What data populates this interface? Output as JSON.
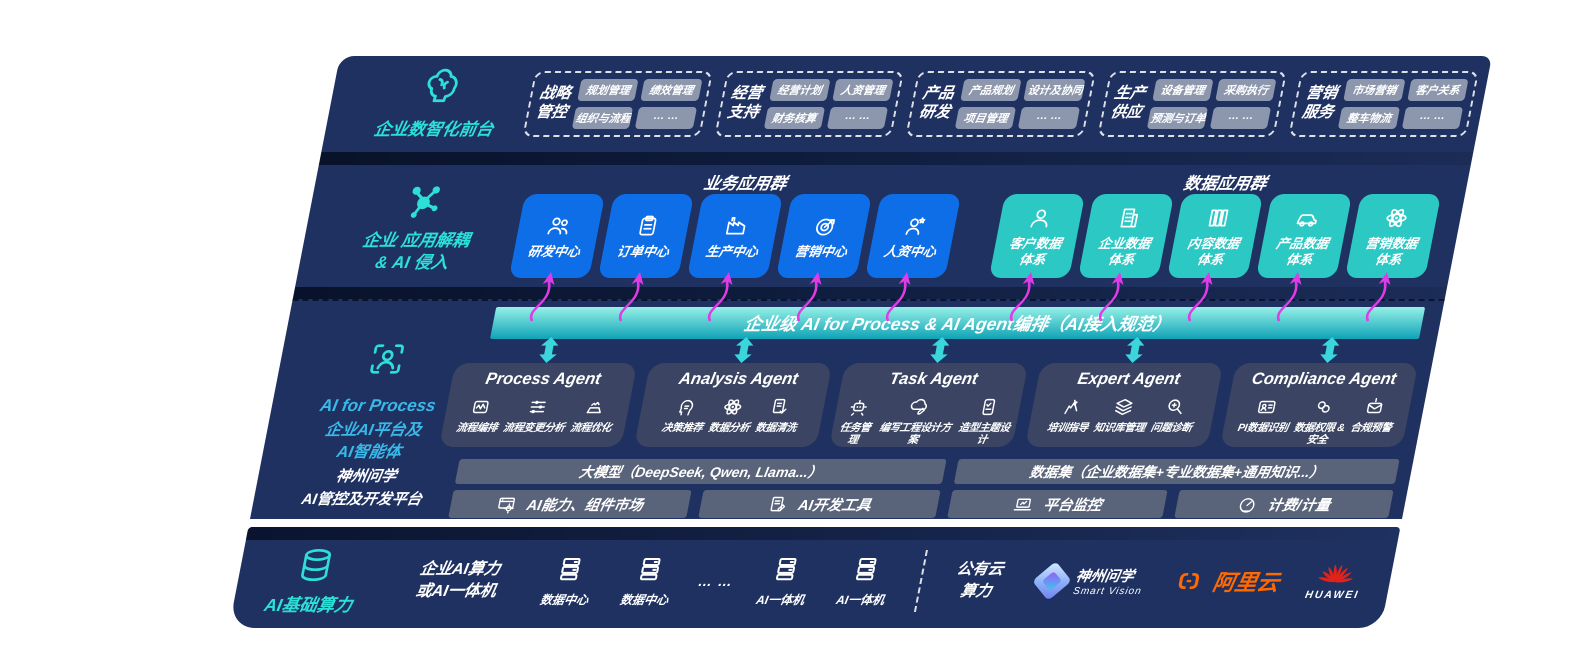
{
  "colors": {
    "navy": "#1f3161",
    "blue_box": "#0d6ee8",
    "teal_box": "#2cc8c4",
    "bar_teal_top": "#96f0e7",
    "bar_teal_bottom": "#0fa3b6",
    "accent_teal": "#2ce0d8",
    "accent_blue": "#38b9e8",
    "magenta_arrow": "#e13be8",
    "agent_card": "#3c4663",
    "row_gray": "#59637a",
    "alibaba_orange": "#ff6a00",
    "huawei_red": "#e2231a"
  },
  "front_office": {
    "label": "企业数智化前台",
    "groups": [
      {
        "name": "战略\n管控",
        "pills": [
          "规划管理",
          "绩效管理",
          "组织与流程",
          "… …"
        ]
      },
      {
        "name": "经营\n支持",
        "pills": [
          "经营计划",
          "人资管理",
          "财务核算",
          "… …"
        ]
      },
      {
        "name": "产品\n研发",
        "pills": [
          "产品规划",
          "设计及协同",
          "项目管理",
          "… …"
        ]
      },
      {
        "name": "生产\n供应",
        "pills": [
          "设备管理",
          "采购执行",
          "预测与订单",
          "… …"
        ]
      },
      {
        "name": "营销\n服务",
        "pills": [
          "市场营销",
          "客户关系",
          "整车物流",
          "… …"
        ]
      }
    ]
  },
  "app_layer": {
    "label": "企业 应用解耦\n& AI 侵入",
    "business_title": "业务应用群",
    "data_title": "数据应用群",
    "business_apps": [
      {
        "label": "研发中心",
        "icon": "users-icon"
      },
      {
        "label": "订单中心",
        "icon": "clipboard-icon"
      },
      {
        "label": "生产中心",
        "icon": "factory-icon"
      },
      {
        "label": "营销中心",
        "icon": "target-icon"
      },
      {
        "label": "人资中心",
        "icon": "person-star-icon"
      }
    ],
    "data_apps": [
      {
        "label": "客户数据\n体系",
        "icon": "user-icon"
      },
      {
        "label": "企业数据\n体系",
        "icon": "building-icon"
      },
      {
        "label": "内容数据\n体系",
        "icon": "columns-icon"
      },
      {
        "label": "产品数据\n体系",
        "icon": "car-icon"
      },
      {
        "label": "营销数据\n体系",
        "icon": "atom-icon"
      }
    ]
  },
  "ai_layer": {
    "label_title": "AI for Process",
    "label_sub": "企业AI平台及\nAI智能体",
    "bus_title": "企业级 AI for Process & AI Agent编排（AI接入规范）",
    "agents": [
      {
        "title": "Process Agent",
        "items": [
          {
            "label": "流程编排",
            "icon": "box-wave-icon"
          },
          {
            "label": "流程变更分析",
            "icon": "sliders-icon"
          },
          {
            "label": "流程优化",
            "icon": "optimize-icon"
          }
        ]
      },
      {
        "title": "Analysis Agent",
        "items": [
          {
            "label": "决策推荐",
            "icon": "head-gear-icon"
          },
          {
            "label": "数据分析",
            "icon": "atom-icon"
          },
          {
            "label": "数据清洗",
            "icon": "doc-clean-icon"
          }
        ]
      },
      {
        "title": "Task Agent",
        "items": [
          {
            "label": "任务管理",
            "icon": "robot-icon"
          },
          {
            "label": "编写工程设计方案",
            "icon": "cloud-pen-icon"
          },
          {
            "label": "造型主题设计",
            "icon": "tablet-check-icon"
          }
        ]
      },
      {
        "title": "Expert Agent",
        "items": [
          {
            "label": "培训指导",
            "icon": "training-icon"
          },
          {
            "label": "知识库管理",
            "icon": "layers-icon"
          },
          {
            "label": "问题诊断",
            "icon": "diagnose-icon"
          }
        ]
      },
      {
        "title": "Compliance Agent",
        "items": [
          {
            "label": "PI数据识别",
            "icon": "id-card-icon"
          },
          {
            "label": "数据权限 &\n安全",
            "icon": "keys-icon"
          },
          {
            "label": "合规预警",
            "icon": "alert-mail-icon"
          }
        ]
      }
    ],
    "platform": {
      "label": "神州问学\nAI管控及开发平台",
      "left": {
        "header": "大模型（DeepSeek, Qwen, Llama...）",
        "cells": [
          {
            "label": "AI能力、组件市场",
            "icon": "window-gear-icon"
          },
          {
            "label": "AI开发工具",
            "icon": "doc-pen-icon"
          }
        ]
      },
      "right": {
        "header": "数据集（企业数据集+专业数据集+通用知识...）",
        "cells": [
          {
            "label": "平台监控",
            "icon": "laptop-chart-icon"
          },
          {
            "label": "计费/计量",
            "icon": "gauge-icon"
          }
        ]
      }
    }
  },
  "compute_layer": {
    "label": "AI基础算力",
    "cluster_label": "企业AI算力\n或AI一体机",
    "dots": "… …",
    "nodes": [
      {
        "label": "数据中心",
        "icon": "server-icon"
      },
      {
        "label": "数据中心",
        "icon": "server-icon"
      },
      {
        "label": "AI一体机",
        "icon": "server-icon"
      },
      {
        "label": "AI一体机",
        "icon": "server-icon"
      }
    ],
    "public_cloud": "公有云\n算力",
    "vendors": {
      "smartvision": {
        "name": "神州问学",
        "sub": "Smart Vision"
      },
      "alibaba": {
        "text": "阿里云"
      },
      "huawei": {
        "text": "HUAWEI"
      }
    }
  }
}
